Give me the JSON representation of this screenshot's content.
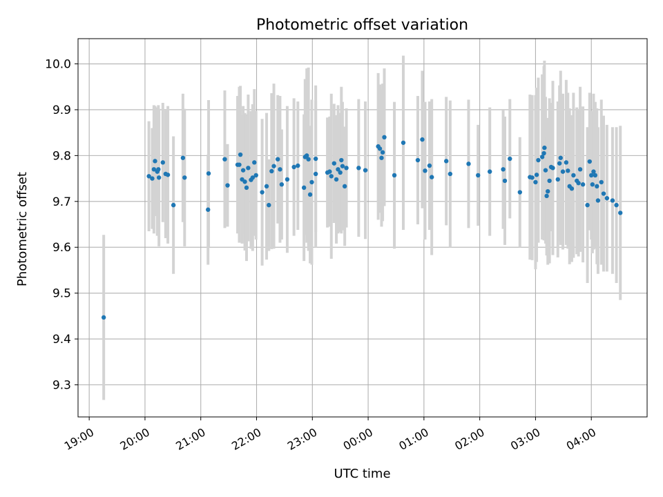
{
  "chart_data": {
    "type": "scatter",
    "title": "Photometric offset variation",
    "xlabel": "UTC time",
    "ylabel": "Photometric offset",
    "xlim": [
      -0.2,
      10.0
    ],
    "ylim": [
      9.23,
      10.055
    ],
    "xticks": [
      {
        "value": 0,
        "label": "19:00"
      },
      {
        "value": 1,
        "label": "20:00"
      },
      {
        "value": 2,
        "label": "21:00"
      },
      {
        "value": 3,
        "label": "22:00"
      },
      {
        "value": 4,
        "label": "23:00"
      },
      {
        "value": 5,
        "label": "00:00"
      },
      {
        "value": 6,
        "label": "01:00"
      },
      {
        "value": 7,
        "label": "02:00"
      },
      {
        "value": 8,
        "label": "03:00"
      },
      {
        "value": 9,
        "label": "04:00"
      }
    ],
    "yticks": [
      {
        "value": 9.3,
        "label": "9.3"
      },
      {
        "value": 9.4,
        "label": "9.4"
      },
      {
        "value": 9.5,
        "label": "9.5"
      },
      {
        "value": 9.6,
        "label": "9.6"
      },
      {
        "value": 9.7,
        "label": "9.7"
      },
      {
        "value": 9.8,
        "label": "9.8"
      },
      {
        "value": 9.9,
        "label": "9.9"
      },
      {
        "value": 10.0,
        "label": "10.0"
      }
    ],
    "grid": true,
    "x_unit": "hours since 19:00 UTC",
    "point_color": "#1f77b4",
    "errorbar_color": "#d3d3d3",
    "points": [
      [
        0.26,
        9.447,
        0.18
      ],
      [
        1.07,
        9.755,
        0.12
      ],
      [
        1.13,
        9.75,
        0.11
      ],
      [
        1.16,
        9.77,
        0.14
      ],
      [
        1.18,
        9.788,
        0.12
      ],
      [
        1.22,
        9.765,
        0.14
      ],
      [
        1.24,
        9.77,
        0.14
      ],
      [
        1.25,
        9.752,
        0.15
      ],
      [
        1.32,
        9.785,
        0.13
      ],
      [
        1.37,
        9.76,
        0.14
      ],
      [
        1.41,
        9.758,
        0.15
      ],
      [
        1.51,
        9.692,
        0.15
      ],
      [
        1.68,
        9.795,
        0.14
      ],
      [
        1.71,
        9.752,
        0.15
      ],
      [
        2.13,
        9.682,
        0.12
      ],
      [
        2.14,
        9.761,
        0.16
      ],
      [
        2.43,
        9.792,
        0.15
      ],
      [
        2.48,
        9.735,
        0.09
      ],
      [
        2.66,
        9.78,
        0.15
      ],
      [
        2.69,
        9.78,
        0.17
      ],
      [
        2.71,
        9.802,
        0.15
      ],
      [
        2.74,
        9.748,
        0.14
      ],
      [
        2.76,
        9.768,
        0.14
      ],
      [
        2.79,
        9.743,
        0.15
      ],
      [
        2.82,
        9.73,
        0.16
      ],
      [
        2.85,
        9.773,
        0.16
      ],
      [
        2.9,
        9.747,
        0.15
      ],
      [
        2.93,
        9.752,
        0.16
      ],
      [
        2.96,
        9.785,
        0.16
      ],
      [
        2.99,
        9.757,
        0.14
      ],
      [
        3.1,
        9.72,
        0.16
      ],
      [
        3.18,
        9.733,
        0.16
      ],
      [
        3.22,
        9.692,
        0.1
      ],
      [
        3.27,
        9.766,
        0.17
      ],
      [
        3.31,
        9.777,
        0.18
      ],
      [
        3.38,
        9.792,
        0.14
      ],
      [
        3.42,
        9.77,
        0.16
      ],
      [
        3.45,
        9.737,
        0.12
      ],
      [
        3.55,
        9.748,
        0.16
      ],
      [
        3.67,
        9.775,
        0.15
      ],
      [
        3.74,
        9.778,
        0.14
      ],
      [
        3.85,
        9.73,
        0.16
      ],
      [
        3.87,
        9.797,
        0.17
      ],
      [
        3.9,
        9.8,
        0.19
      ],
      [
        3.93,
        9.792,
        0.2
      ],
      [
        3.96,
        9.715,
        0.15
      ],
      [
        3.99,
        9.742,
        0.18
      ],
      [
        4.06,
        9.793,
        0.16
      ],
      [
        4.06,
        9.76,
        0.16
      ],
      [
        4.27,
        9.763,
        0.12
      ],
      [
        4.31,
        9.765,
        0.12
      ],
      [
        4.34,
        9.755,
        0.18
      ],
      [
        4.39,
        9.783,
        0.13
      ],
      [
        4.43,
        9.748,
        0.14
      ],
      [
        4.46,
        9.77,
        0.14
      ],
      [
        4.5,
        9.763,
        0.13
      ],
      [
        4.52,
        9.79,
        0.16
      ],
      [
        4.54,
        9.777,
        0.14
      ],
      [
        4.58,
        9.733,
        0.13
      ],
      [
        4.61,
        9.773,
        0.13
      ],
      [
        4.83,
        9.773,
        0.15
      ],
      [
        4.95,
        9.768,
        0.15
      ],
      [
        5.18,
        9.82,
        0.16
      ],
      [
        5.21,
        9.815,
        0.14
      ],
      [
        5.24,
        9.795,
        0.15
      ],
      [
        5.26,
        9.807,
        0.15
      ],
      [
        5.29,
        9.84,
        0.15
      ],
      [
        5.47,
        9.757,
        0.16
      ],
      [
        5.63,
        9.828,
        0.19
      ],
      [
        5.89,
        9.79,
        0.14
      ],
      [
        5.97,
        9.835,
        0.15
      ],
      [
        6.02,
        9.767,
        0.15
      ],
      [
        6.1,
        9.778,
        0.14
      ],
      [
        6.14,
        9.753,
        0.17
      ],
      [
        6.4,
        9.788,
        0.14
      ],
      [
        6.47,
        9.76,
        0.16
      ],
      [
        6.8,
        9.782,
        0.14
      ],
      [
        6.97,
        9.757,
        0.11
      ],
      [
        7.18,
        9.765,
        0.14
      ],
      [
        7.42,
        9.77,
        0.13
      ],
      [
        7.45,
        9.745,
        0.14
      ],
      [
        7.54,
        9.793,
        0.13
      ],
      [
        7.72,
        9.72,
        0.12
      ],
      [
        7.9,
        9.753,
        0.18
      ],
      [
        7.94,
        9.752,
        0.18
      ],
      [
        8.0,
        9.742,
        0.19
      ],
      [
        8.02,
        9.758,
        0.19
      ],
      [
        8.05,
        9.79,
        0.18
      ],
      [
        8.12,
        9.797,
        0.18
      ],
      [
        8.15,
        9.805,
        0.19
      ],
      [
        8.16,
        9.817,
        0.19
      ],
      [
        8.18,
        9.768,
        0.16
      ],
      [
        8.2,
        9.712,
        0.13
      ],
      [
        8.22,
        9.722,
        0.16
      ],
      [
        8.25,
        9.745,
        0.18
      ],
      [
        8.28,
        9.775,
        0.14
      ],
      [
        8.31,
        9.773,
        0.19
      ],
      [
        8.4,
        9.748,
        0.17
      ],
      [
        8.43,
        9.783,
        0.17
      ],
      [
        8.45,
        9.795,
        0.19
      ],
      [
        8.49,
        9.765,
        0.17
      ],
      [
        8.55,
        9.785,
        0.18
      ],
      [
        8.58,
        9.767,
        0.17
      ],
      [
        8.61,
        9.733,
        0.17
      ],
      [
        8.65,
        9.728,
        0.16
      ],
      [
        8.68,
        9.757,
        0.18
      ],
      [
        8.74,
        9.745,
        0.16
      ],
      [
        8.77,
        9.74,
        0.16
      ],
      [
        8.8,
        9.77,
        0.18
      ],
      [
        8.85,
        9.737,
        0.17
      ],
      [
        8.93,
        9.692,
        0.17
      ],
      [
        8.97,
        9.787,
        0.15
      ],
      [
        9.0,
        9.757,
        0.14
      ],
      [
        9.02,
        9.737,
        0.15
      ],
      [
        9.04,
        9.765,
        0.17
      ],
      [
        9.07,
        9.757,
        0.16
      ],
      [
        9.1,
        9.733,
        0.17
      ],
      [
        9.12,
        9.702,
        0.16
      ],
      [
        9.18,
        9.742,
        0.18
      ],
      [
        9.22,
        9.717,
        0.17
      ],
      [
        9.28,
        9.707,
        0.16
      ],
      [
        9.38,
        9.702,
        0.16
      ],
      [
        9.45,
        9.692,
        0.17
      ],
      [
        9.52,
        9.675,
        0.19
      ]
    ],
    "point_fields": [
      "time",
      "offset",
      "error"
    ]
  }
}
